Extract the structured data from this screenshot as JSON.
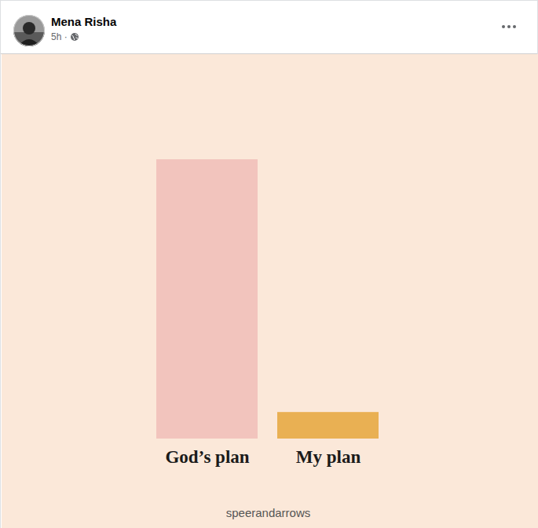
{
  "post": {
    "author": "Mena Risha",
    "time": "5h ·"
  },
  "chart_data": {
    "type": "bar",
    "categories": [
      "God’s plan",
      "My plan"
    ],
    "values": [
      100,
      9.5
    ],
    "colors": [
      "#f2c4bd",
      "#e9b053"
    ],
    "ylim": [
      0,
      100
    ],
    "tick_labels": "x",
    "caption": "speerandarrows"
  }
}
